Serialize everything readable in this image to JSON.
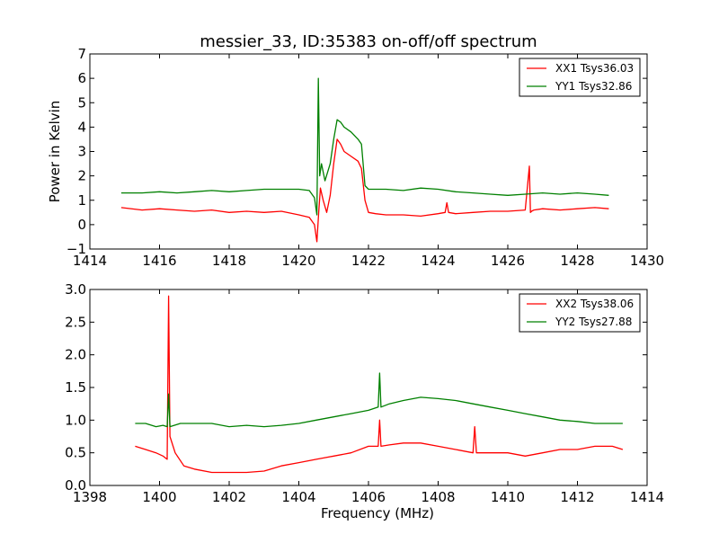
{
  "title": "messier_33, ID:35383 on-off/off spectrum",
  "chart_data": [
    {
      "type": "line",
      "title": "messier_33, ID:35383 on-off/off spectrum",
      "xlabel": "",
      "ylabel": "Power in Kelvin",
      "xlim": [
        1414,
        1430
      ],
      "ylim": [
        -1,
        7
      ],
      "xticks": [
        "1414",
        "1416",
        "1418",
        "1420",
        "1422",
        "1424",
        "1426",
        "1428",
        "1430"
      ],
      "yticks": [
        "−1",
        "0",
        "1",
        "2",
        "3",
        "4",
        "5",
        "6",
        "7"
      ],
      "grid": false,
      "legend_position": "top-right",
      "series": [
        {
          "name": "XX1 Tsys36.03",
          "color": "#ff0000",
          "x": [
            1414.9,
            1415.5,
            1416.0,
            1416.5,
            1417.0,
            1417.5,
            1418.0,
            1418.5,
            1419.0,
            1419.5,
            1420.0,
            1420.3,
            1420.45,
            1420.52,
            1420.57,
            1420.62,
            1420.7,
            1420.8,
            1420.9,
            1421.0,
            1421.1,
            1421.2,
            1421.3,
            1421.5,
            1421.7,
            1421.8,
            1421.9,
            1422.0,
            1422.2,
            1422.5,
            1423.0,
            1423.5,
            1424.0,
            1424.2,
            1424.25,
            1424.3,
            1424.5,
            1425.0,
            1425.5,
            1426.0,
            1426.5,
            1426.62,
            1426.65,
            1426.68,
            1426.75,
            1427.0,
            1427.5,
            1428.0,
            1428.5,
            1428.9
          ],
          "values": [
            0.7,
            0.6,
            0.65,
            0.6,
            0.55,
            0.6,
            0.5,
            0.55,
            0.5,
            0.55,
            0.4,
            0.3,
            0.0,
            -0.7,
            0.5,
            1.5,
            1.0,
            0.5,
            1.2,
            2.5,
            3.5,
            3.3,
            3.0,
            2.8,
            2.6,
            2.3,
            1.0,
            0.5,
            0.45,
            0.4,
            0.4,
            0.35,
            0.45,
            0.5,
            0.9,
            0.5,
            0.45,
            0.5,
            0.55,
            0.55,
            0.6,
            2.4,
            0.5,
            0.55,
            0.6,
            0.65,
            0.6,
            0.65,
            0.7,
            0.65
          ]
        },
        {
          "name": "YY1 Tsys32.86",
          "color": "#008000",
          "x": [
            1414.9,
            1415.5,
            1416.0,
            1416.5,
            1417.0,
            1417.5,
            1418.0,
            1418.5,
            1419.0,
            1419.5,
            1420.0,
            1420.3,
            1420.45,
            1420.52,
            1420.56,
            1420.6,
            1420.65,
            1420.75,
            1420.9,
            1421.0,
            1421.1,
            1421.2,
            1421.3,
            1421.5,
            1421.7,
            1421.8,
            1421.9,
            1422.0,
            1422.2,
            1422.5,
            1423.0,
            1423.5,
            1424.0,
            1424.5,
            1425.0,
            1425.5,
            1426.0,
            1426.5,
            1427.0,
            1427.5,
            1428.0,
            1428.5,
            1428.9
          ],
          "values": [
            1.3,
            1.3,
            1.35,
            1.3,
            1.35,
            1.4,
            1.35,
            1.4,
            1.45,
            1.45,
            1.45,
            1.4,
            1.1,
            0.4,
            6.0,
            2.0,
            2.5,
            1.8,
            2.5,
            3.5,
            4.3,
            4.2,
            4.0,
            3.8,
            3.5,
            3.3,
            1.6,
            1.45,
            1.45,
            1.45,
            1.4,
            1.5,
            1.45,
            1.35,
            1.3,
            1.25,
            1.2,
            1.25,
            1.3,
            1.25,
            1.3,
            1.25,
            1.2
          ]
        }
      ]
    },
    {
      "type": "line",
      "title": "",
      "xlabel": "Frequency (MHz)",
      "ylabel": "",
      "xlim": [
        1398,
        1414
      ],
      "ylim": [
        0,
        3
      ],
      "xticks": [
        "1398",
        "1400",
        "1402",
        "1404",
        "1406",
        "1408",
        "1410",
        "1412",
        "1414"
      ],
      "yticks": [
        "0.0",
        "0.5",
        "1.0",
        "1.5",
        "2.0",
        "2.5",
        "3.0"
      ],
      "grid": false,
      "legend_position": "top-right",
      "series": [
        {
          "name": "XX2 Tsys38.06",
          "color": "#ff0000",
          "x": [
            1399.3,
            1399.6,
            1399.9,
            1400.1,
            1400.22,
            1400.26,
            1400.3,
            1400.45,
            1400.7,
            1401.0,
            1401.5,
            1402.0,
            1402.5,
            1403.0,
            1403.5,
            1404.0,
            1404.5,
            1405.0,
            1405.5,
            1406.0,
            1406.28,
            1406.32,
            1406.36,
            1406.6,
            1407.0,
            1407.5,
            1408.0,
            1408.5,
            1409.0,
            1409.05,
            1409.1,
            1409.5,
            1410.0,
            1410.5,
            1411.0,
            1411.5,
            1412.0,
            1412.5,
            1413.0,
            1413.3
          ],
          "values": [
            0.6,
            0.55,
            0.5,
            0.45,
            0.4,
            2.9,
            0.75,
            0.5,
            0.3,
            0.25,
            0.2,
            0.2,
            0.2,
            0.22,
            0.3,
            0.35,
            0.4,
            0.45,
            0.5,
            0.6,
            0.6,
            1.0,
            0.6,
            0.62,
            0.65,
            0.65,
            0.6,
            0.55,
            0.5,
            0.9,
            0.5,
            0.5,
            0.5,
            0.45,
            0.5,
            0.55,
            0.55,
            0.6,
            0.6,
            0.55
          ]
        },
        {
          "name": "YY2 Tsys27.88",
          "color": "#008000",
          "x": [
            1399.3,
            1399.6,
            1399.9,
            1400.1,
            1400.22,
            1400.26,
            1400.3,
            1400.6,
            1401.0,
            1401.5,
            1402.0,
            1402.5,
            1403.0,
            1403.5,
            1404.0,
            1404.5,
            1405.0,
            1405.5,
            1406.0,
            1406.28,
            1406.32,
            1406.36,
            1406.6,
            1407.0,
            1407.5,
            1408.0,
            1408.5,
            1409.0,
            1409.5,
            1410.0,
            1410.5,
            1411.0,
            1411.5,
            1412.0,
            1412.5,
            1413.0,
            1413.3
          ],
          "values": [
            0.95,
            0.95,
            0.9,
            0.92,
            0.9,
            1.4,
            0.9,
            0.95,
            0.95,
            0.95,
            0.9,
            0.92,
            0.9,
            0.92,
            0.95,
            1.0,
            1.05,
            1.1,
            1.15,
            1.2,
            1.72,
            1.2,
            1.25,
            1.3,
            1.35,
            1.33,
            1.3,
            1.25,
            1.2,
            1.15,
            1.1,
            1.05,
            1.0,
            0.98,
            0.95,
            0.95,
            0.95
          ]
        }
      ]
    }
  ]
}
